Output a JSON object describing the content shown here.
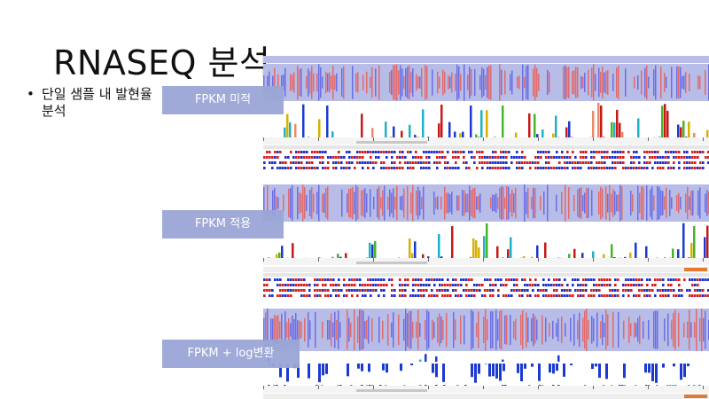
{
  "slide": {
    "title": "RNASEQ 분석",
    "bullet": "단일 샘플 내 발현율 분석"
  },
  "labels": [
    "FPKM 미적",
    "FPKM 적용",
    "FPKM + log변환"
  ],
  "colors": {
    "label_bg": "#9aa6d6",
    "track_bg": "#b8bde8",
    "red_read": "#e26a6a",
    "blue_read": "#6a6ee6",
    "bar_red": "#c81818",
    "bar_blue": "#1a3ad0",
    "bar_green": "#48b428",
    "bar_yellow": "#d8b000",
    "bar_cyan": "#20b0c8",
    "gene_red": "#d42020",
    "gene_blue": "#2030c8"
  }
}
